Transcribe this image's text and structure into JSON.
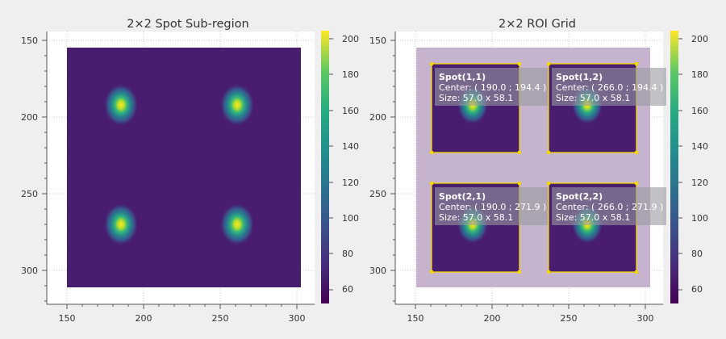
{
  "panels": [
    {
      "title": "2×2 Spot Sub-region",
      "x_ticks": [
        "150",
        "200",
        "250",
        "300"
      ],
      "y_ticks": [
        "150",
        "200",
        "250",
        "300"
      ],
      "colorbar_ticks": [
        "60",
        "80",
        "100",
        "120",
        "140",
        "160",
        "180",
        "200"
      ]
    },
    {
      "title": "2×2 ROI Grid",
      "x_ticks": [
        "150",
        "200",
        "250",
        "300"
      ],
      "y_ticks": [
        "150",
        "200",
        "250",
        "300"
      ],
      "colorbar_ticks": [
        "60",
        "80",
        "100",
        "120",
        "140",
        "160",
        "180",
        "200"
      ],
      "rois": [
        {
          "name": "Spot(1,1)",
          "center": "Center: ( 190.0 ; 194.4 )",
          "size": "Size: 57.0 x 58.1"
        },
        {
          "name": "Spot(1,2)",
          "center": "Center: ( 266.0 ; 194.4 )",
          "size": "Size: 57.0 x 58.1"
        },
        {
          "name": "Spot(2,1)",
          "center": "Center: ( 190.0 ; 271.9 )",
          "size": "Size: 57.0 x 58.1"
        },
        {
          "name": "Spot(2,2)",
          "center": "Center: ( 266.0 ; 271.9 )",
          "size": "Size: 57.0 x 58.1"
        }
      ]
    }
  ],
  "colors": {
    "background": "#efefef",
    "image_background": "#481c6e",
    "roi_border": "#f5d800",
    "outer_roi_fill": "#c6b4cf",
    "label_box": "#9a9aa0"
  },
  "colormap": "viridis"
}
